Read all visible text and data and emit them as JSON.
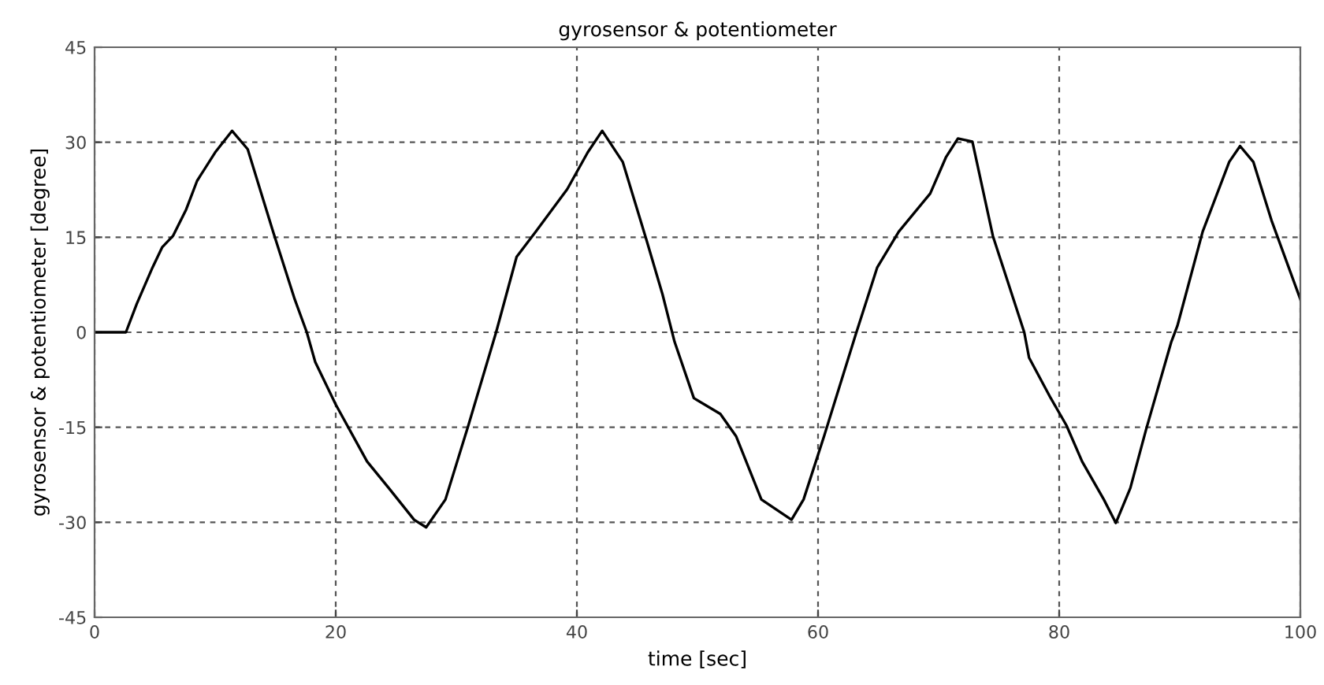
{
  "chart_data": {
    "type": "line",
    "title": "gyrosensor & potentiometer",
    "xlabel": "time [sec]",
    "ylabel": "gyrosensor & potentiometer [degree]",
    "x": [
      0,
      2.6,
      3.5,
      4.8,
      5.6,
      6.5,
      7.6,
      8.5,
      10,
      11.4,
      12.7,
      14.8,
      16.6,
      17.6,
      18.3,
      20,
      22.6,
      24.4,
      26.5,
      27.5,
      29.1,
      31,
      33.3,
      35,
      36.6,
      39.2,
      40.9,
      42.1,
      43.8,
      45.8,
      47.1,
      48.1,
      49.7,
      51.9,
      53.2,
      55.3,
      57.8,
      58.8,
      60.5,
      63.1,
      64.9,
      66.7,
      69.3,
      70.6,
      71.6,
      72.8,
      74.5,
      77.1,
      77.5,
      79.3,
      80.6,
      81.9,
      83.7,
      84.7,
      85.9,
      87.2,
      89.3,
      89.8,
      91.9,
      94.1,
      95,
      96.1,
      97.6,
      100
    ],
    "series": [
      {
        "color": "#000000",
        "values": [
          0,
          0,
          4.5,
          10.2,
          13.4,
          15.2,
          19.4,
          23.9,
          28.4,
          31.8,
          28.9,
          15.9,
          5.2,
          0,
          -4.7,
          -11.4,
          -20.4,
          -24.6,
          -29.6,
          -30.8,
          -26.4,
          -14.7,
          0,
          11.9,
          15.9,
          22.6,
          28.4,
          31.8,
          26.9,
          14.4,
          6,
          -1.5,
          -10.4,
          -12.9,
          -16.4,
          -26.4,
          -29.6,
          -26.4,
          -16.4,
          -0.5,
          10.2,
          15.9,
          21.9,
          27.6,
          30.6,
          30.1,
          15.2,
          0,
          -4,
          -10.4,
          -14.7,
          -20.4,
          -26.4,
          -30.1,
          -24.6,
          -15.4,
          -1.5,
          1,
          15.9,
          26.9,
          29.4,
          26.9,
          17.7,
          5.2
        ]
      }
    ],
    "xlim": [
      0,
      100
    ],
    "xticks": [
      0,
      20,
      40,
      60,
      80,
      100
    ],
    "ylim": [
      -45,
      45
    ],
    "yticks": [
      -45,
      -30,
      -15,
      0,
      15,
      30,
      45
    ],
    "grid": true,
    "line_style": "solid",
    "marker": "none"
  }
}
